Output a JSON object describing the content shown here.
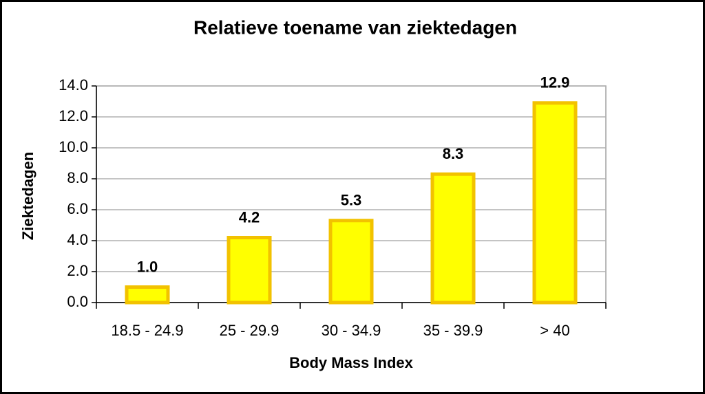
{
  "chart_data": {
    "type": "bar",
    "title": "Relatieve toename van ziektedagen",
    "x_label": "Body Mass Index",
    "y_label": "Ziektedagen",
    "categories": [
      "18.5 - 24.9",
      "25 - 29.9",
      "30 - 34.9",
      "35 - 39.9",
      "> 40"
    ],
    "values": [
      1.0,
      4.2,
      5.3,
      8.3,
      12.9
    ],
    "value_labels": [
      "1.0",
      "4.2",
      "5.3",
      "8.3",
      "12.9"
    ],
    "color": "#ffff00",
    "edge_color": "#f2c200",
    "ylim": [
      0,
      14
    ],
    "yticks": [
      {
        "value": 0,
        "label": "0.0"
      },
      {
        "value": 2,
        "label": "2.0"
      },
      {
        "value": 4,
        "label": "4.0"
      },
      {
        "value": 6,
        "label": "6.0"
      },
      {
        "value": 8,
        "label": "8.0"
      },
      {
        "value": 10,
        "label": "10.0"
      },
      {
        "value": 12,
        "label": "12.0"
      },
      {
        "value": 14,
        "label": "14.0"
      }
    ],
    "grid": true
  }
}
